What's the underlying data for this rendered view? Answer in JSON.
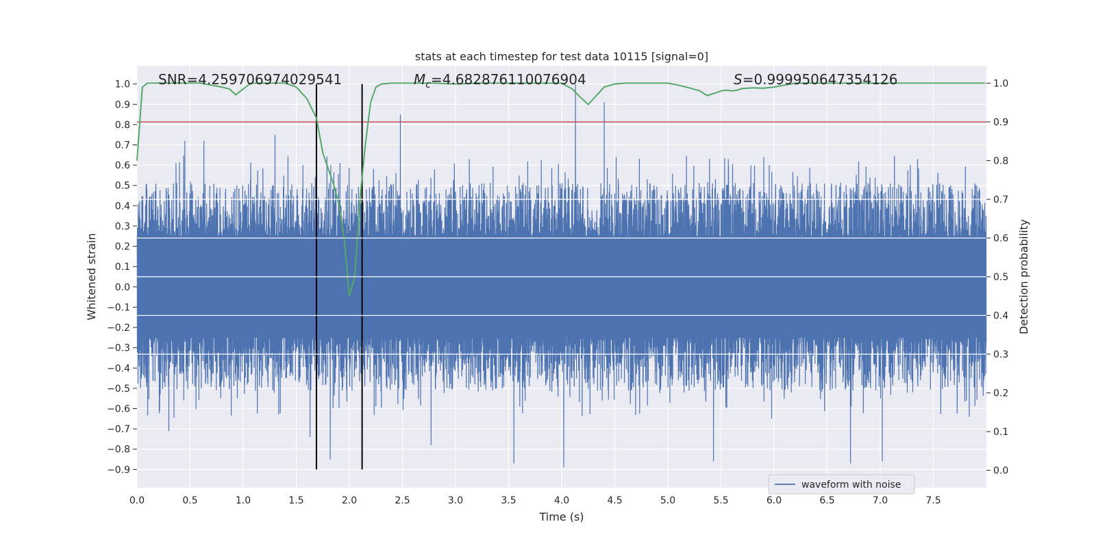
{
  "chart_data": {
    "type": "line",
    "title": "stats at each timestep for test data 10115 [signal=0]",
    "xlabel": "Time (s)",
    "ylabel_left": "Whitened strain",
    "ylabel_right": "Detection probability",
    "xlim": [
      0.0,
      8.0
    ],
    "ylim_left": [
      -0.99,
      1.09
    ],
    "ylim_right": [
      -0.045,
      1.045
    ],
    "x_ticks": [
      0.0,
      0.5,
      1.0,
      1.5,
      2.0,
      2.5,
      3.0,
      3.5,
      4.0,
      4.5,
      5.0,
      5.5,
      6.0,
      6.5,
      7.0,
      7.5
    ],
    "x_tick_labels": [
      "0.0",
      "0.5",
      "1.0",
      "1.5",
      "2.0",
      "2.5",
      "3.0",
      "3.5",
      "4.0",
      "4.5",
      "5.0",
      "5.5",
      "6.0",
      "6.5",
      "7.0",
      "7.5"
    ],
    "y_left_ticks": [
      -0.9,
      -0.8,
      -0.7,
      -0.6,
      -0.5,
      -0.4,
      -0.3,
      -0.2,
      -0.1,
      0.0,
      0.1,
      0.2,
      0.3,
      0.4,
      0.5,
      0.6,
      0.7,
      0.8,
      0.9,
      1.0
    ],
    "y_left_tick_labels": [
      "−0.9",
      "−0.8",
      "−0.7",
      "−0.6",
      "−0.5",
      "−0.4",
      "−0.3",
      "−0.2",
      "−0.1",
      "0.0",
      "0.1",
      "0.2",
      "0.3",
      "0.4",
      "0.5",
      "0.6",
      "0.7",
      "0.8",
      "0.9",
      "1.0"
    ],
    "y_right_ticks": [
      0.0,
      0.1,
      0.2,
      0.3,
      0.4,
      0.5,
      0.6,
      0.7,
      0.8,
      0.9,
      1.0
    ],
    "y_right_tick_labels": [
      "0.0",
      "0.1",
      "0.2",
      "0.3",
      "0.4",
      "0.5",
      "0.6",
      "0.7",
      "0.8",
      "0.9",
      "1.0"
    ],
    "grid": true,
    "legend": {
      "placement": "lower-right",
      "entries": [
        "waveform with noise"
      ]
    },
    "annotations": {
      "snr": "SNR=4.259706974029541",
      "mc_symbol": "M",
      "mc_subscript": "c",
      "mc_value": "=4.682876110076904",
      "s_symbol": "S",
      "s_value": "=0.999950647354126"
    },
    "threshold_right": 0.9,
    "vertical_lines_x": [
      1.69,
      2.12
    ],
    "vertical_lines_ymax_left": 1.0,
    "waveform": {
      "name": "waveform with noise",
      "samples": 8192,
      "duration_s": 8.0,
      "core_amplitude": 0.25,
      "typical_max": 0.5,
      "typical_min": -0.5,
      "spikes": [
        {
          "t": 0.45,
          "v": 0.72
        },
        {
          "t": 0.63,
          "v": 0.72
        },
        {
          "t": 1.3,
          "v": 0.75
        },
        {
          "t": 2.48,
          "v": 0.85
        },
        {
          "t": 4.13,
          "v": 1.0
        },
        {
          "t": 4.4,
          "v": 0.91
        },
        {
          "t": 0.3,
          "v": -0.71
        },
        {
          "t": 1.63,
          "v": -0.74
        },
        {
          "t": 1.82,
          "v": -0.85
        },
        {
          "t": 2.77,
          "v": -0.78
        },
        {
          "t": 3.55,
          "v": -0.87
        },
        {
          "t": 4.02,
          "v": -0.89
        },
        {
          "t": 5.43,
          "v": -0.86
        },
        {
          "t": 6.72,
          "v": -0.87
        },
        {
          "t": 7.02,
          "v": -0.86
        }
      ]
    },
    "probability_series": {
      "x": [
        0.0,
        0.05,
        0.1,
        0.2,
        0.3,
        0.4,
        0.5,
        0.6,
        0.7,
        0.8,
        0.87,
        0.93,
        1.0,
        1.07,
        1.2,
        1.3,
        1.4,
        1.5,
        1.6,
        1.69,
        1.75,
        1.8,
        1.85,
        1.9,
        1.95,
        2.0,
        2.05,
        2.1,
        2.15,
        2.2,
        2.25,
        2.3,
        2.4,
        2.5,
        2.6,
        2.8,
        3.0,
        3.2,
        3.4,
        3.6,
        3.8,
        4.0,
        4.1,
        4.17,
        4.25,
        4.3,
        4.35,
        4.4,
        4.5,
        4.6,
        4.8,
        5.0,
        5.1,
        5.2,
        5.3,
        5.37,
        5.45,
        5.5,
        5.55,
        5.6,
        5.65,
        5.7,
        5.8,
        5.9,
        6.0,
        6.2,
        6.5,
        7.0,
        7.5,
        7.99
      ],
      "y": [
        0.8,
        0.99,
        1.0,
        1.0,
        1.0,
        1.0,
        1.0,
        1.0,
        0.995,
        0.99,
        0.985,
        0.97,
        0.985,
        1.0,
        1.0,
        1.0,
        1.0,
        0.99,
        0.96,
        0.91,
        0.82,
        0.78,
        0.74,
        0.69,
        0.6,
        0.45,
        0.5,
        0.7,
        0.84,
        0.95,
        0.99,
        0.998,
        1.0,
        1.0,
        1.0,
        1.0,
        0.998,
        1.0,
        1.0,
        1.0,
        1.0,
        1.0,
        0.985,
        0.965,
        0.945,
        0.96,
        0.975,
        0.99,
        0.998,
        1.0,
        1.0,
        1.0,
        0.995,
        0.988,
        0.98,
        0.968,
        0.975,
        0.98,
        0.982,
        0.98,
        0.982,
        0.986,
        0.988,
        0.987,
        0.99,
        1.0,
        1.0,
        1.0,
        1.0,
        1.0
      ]
    },
    "colors": {
      "background": "#eaeaf2",
      "grid": "#ffffff",
      "waveform": "#4c72b0",
      "probability": "#55a868",
      "threshold": "#c44e52",
      "vlines": "#000000",
      "text": "#262626"
    }
  }
}
